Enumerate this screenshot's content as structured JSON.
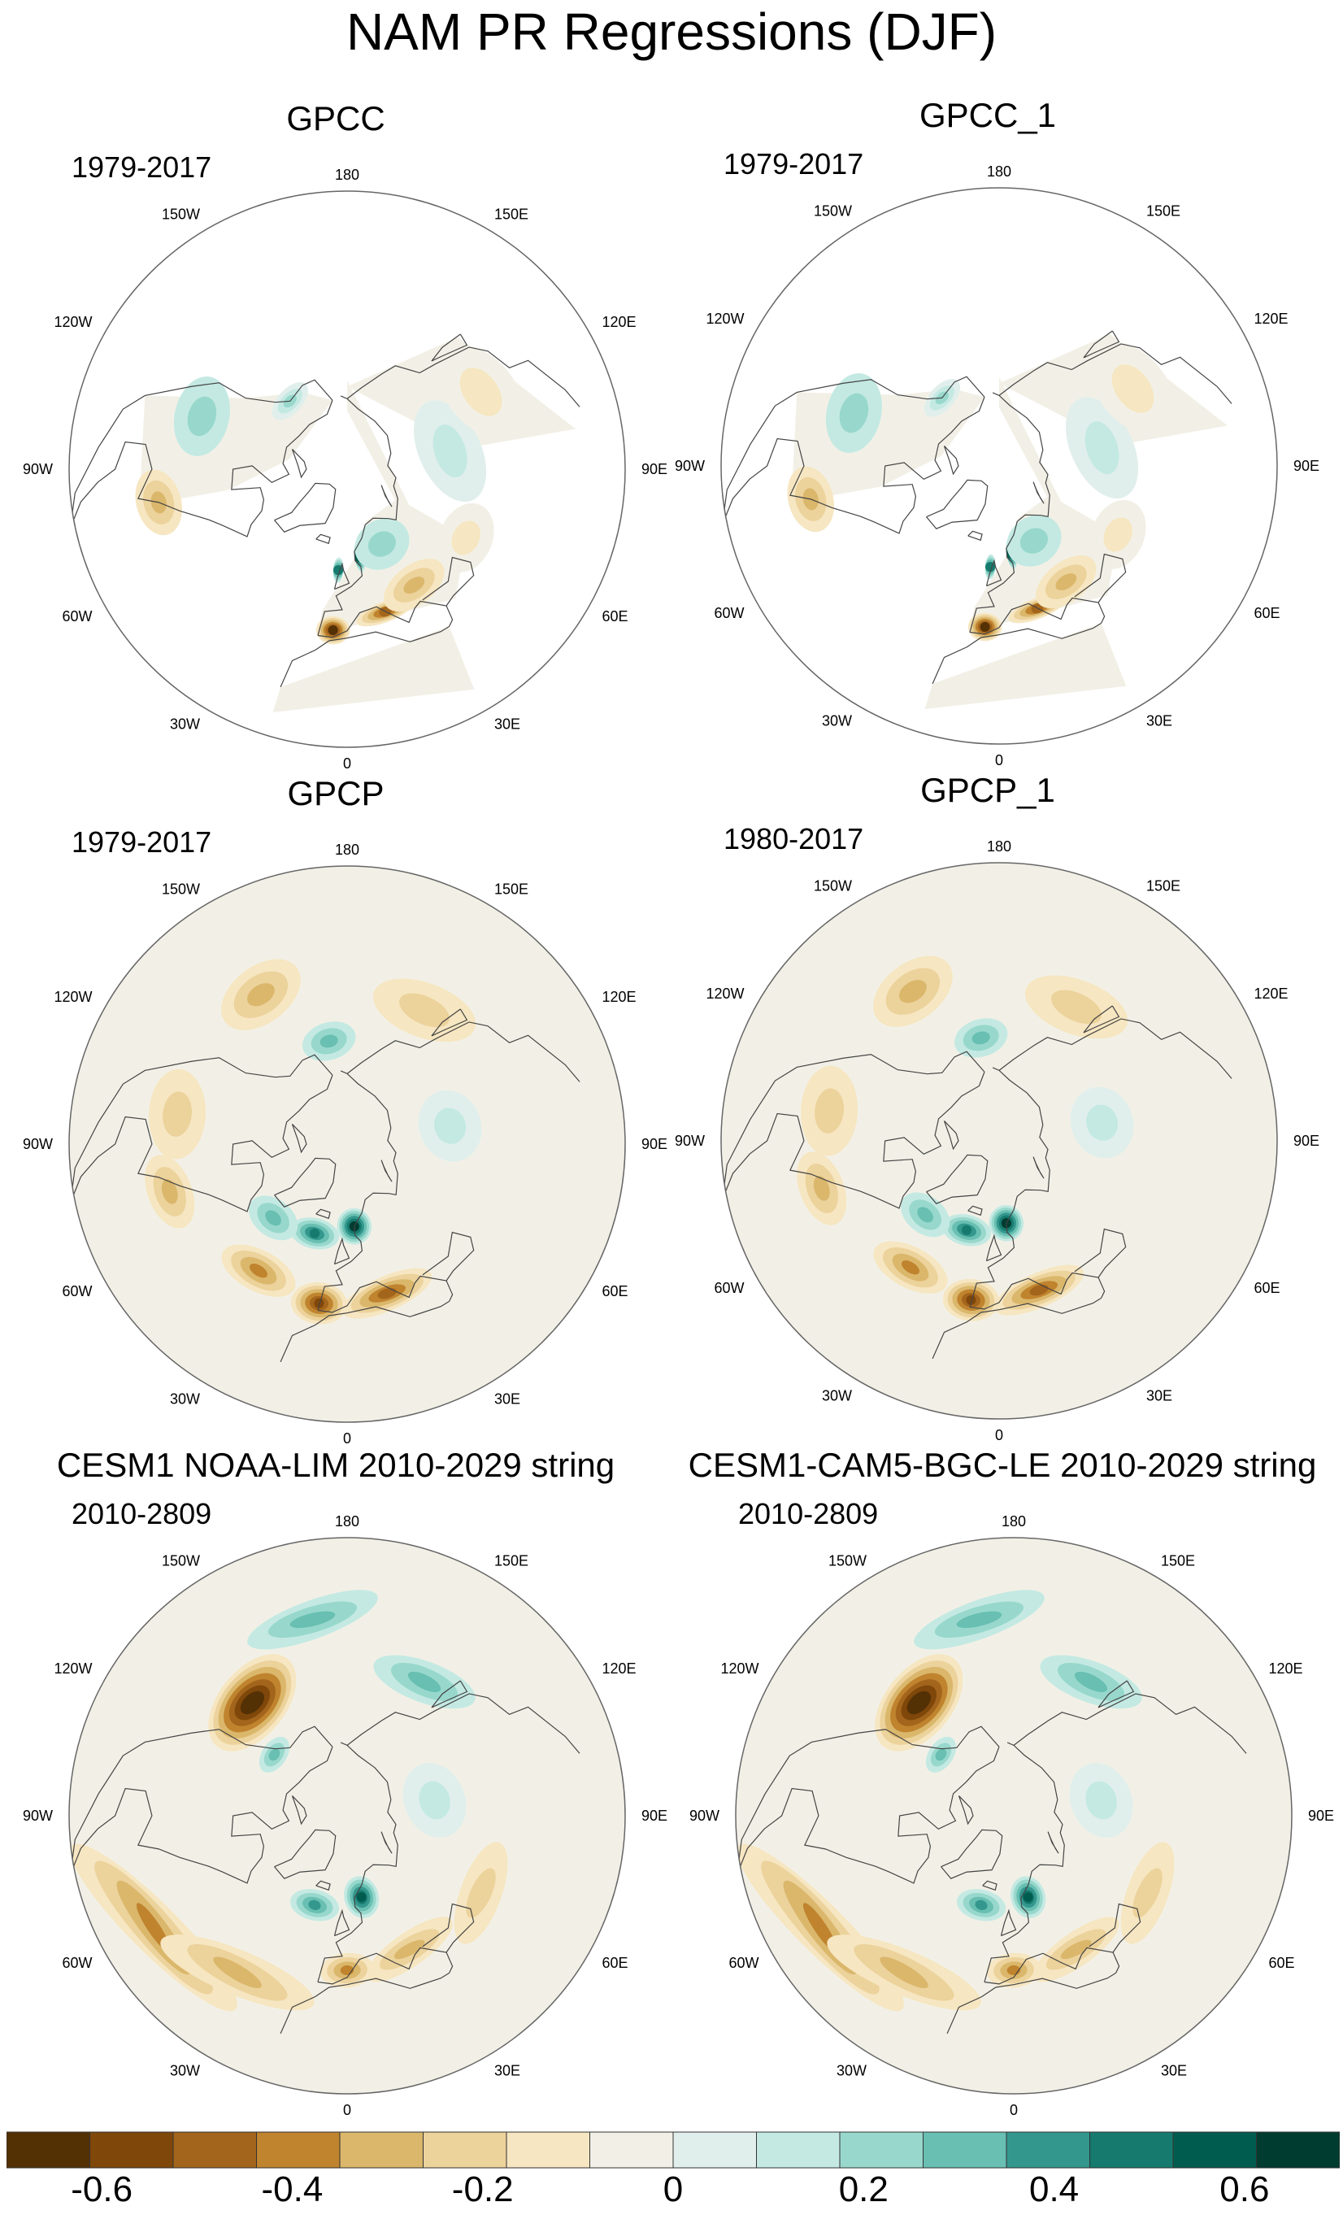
{
  "figure_title": "NAM PR Regressions (DJF)",
  "panels": [
    {
      "title": "GPCC",
      "years": "1979-2017",
      "pattern": "obs_gpcc"
    },
    {
      "title": "GPCC_1",
      "years": "1979-2017",
      "pattern": "obs_gpcc"
    },
    {
      "title": "GPCP",
      "years": "1979-2017",
      "pattern": "obs_gpcp"
    },
    {
      "title": "GPCP_1",
      "years": "1980-2017",
      "pattern": "obs_gpcp"
    },
    {
      "title": "CESM1 NOAA-LIM 2010-2029 string",
      "years": "2010-2809",
      "pattern": "model"
    },
    {
      "title": "CESM1-CAM5-BGC-LE 2010-2029 string",
      "years": "2010-2809",
      "pattern": "model"
    }
  ],
  "longitude_labels": [
    "180",
    "150E",
    "120E",
    "90E",
    "60E",
    "30E",
    "0",
    "30W",
    "60W",
    "90W",
    "120W",
    "150W"
  ],
  "colorbar": {
    "labels": [
      "-0.6",
      "-0.4",
      "-0.2",
      "0",
      "0.2",
      "0.4",
      "0.6"
    ],
    "colors": [
      "#543005",
      "#7f470a",
      "#a3651c",
      "#c0832e",
      "#dab76b",
      "#ecd29b",
      "#f6e6c1",
      "#f2f0e6",
      "#e1efec",
      "#c4e9e3",
      "#98d8cc",
      "#68bfb2",
      "#34978e",
      "#177a6e",
      "#015c50",
      "#003c30"
    ]
  },
  "chart_data": {
    "type": "heatmap",
    "projection": "north-polar-stereographic",
    "title": "NAM PR Regressions (DJF)",
    "variable": "PR",
    "season": "DJF",
    "colorbar_range": [
      -0.7,
      0.7
    ],
    "colorbar_ticks": [
      -0.6,
      -0.4,
      -0.2,
      0,
      0.2,
      0.4,
      0.6
    ],
    "anomaly_blobs": {
      "obs_gpcc": [
        {
          "lon": -5,
          "lat": 38,
          "value": -0.65,
          "rx": 6,
          "ry": 4
        },
        {
          "lon": 15,
          "lat": 42,
          "value": -0.5,
          "rx": 12,
          "ry": 3
        },
        {
          "lon": 30,
          "lat": 46,
          "value": -0.3,
          "rx": 15,
          "ry": 6
        },
        {
          "lon": 8,
          "lat": 60,
          "value": 0.55,
          "rx": 3,
          "ry": 5
        },
        {
          "lon": -5,
          "lat": 56,
          "value": 0.5,
          "rx": 3,
          "ry": 4
        },
        {
          "lon": 25,
          "lat": 62,
          "value": 0.2,
          "rx": 20,
          "ry": 8
        },
        {
          "lon": -80,
          "lat": 30,
          "value": -0.35,
          "rx": 10,
          "ry": 6
        },
        {
          "lon": -110,
          "lat": 40,
          "value": 0.2,
          "rx": 15,
          "ry": 8
        },
        {
          "lon": -140,
          "lat": 60,
          "value": 0.25,
          "rx": 15,
          "ry": 4
        },
        {
          "lon": 100,
          "lat": 55,
          "value": 0.15,
          "rx": 30,
          "ry": 10
        },
        {
          "lon": 60,
          "lat": 45,
          "value": -0.15,
          "rx": 15,
          "ry": 8
        },
        {
          "lon": 120,
          "lat": 40,
          "value": -0.1,
          "rx": 20,
          "ry": 10
        }
      ],
      "obs_gpcp": [
        {
          "lon": -10,
          "lat": 38,
          "value": -0.55,
          "rx": 10,
          "ry": 6
        },
        {
          "lon": 15,
          "lat": 40,
          "value": -0.45,
          "rx": 18,
          "ry": 5
        },
        {
          "lon": -35,
          "lat": 40,
          "value": -0.4,
          "rx": 15,
          "ry": 6
        },
        {
          "lon": 5,
          "lat": 62,
          "value": 0.65,
          "rx": 12,
          "ry": 6
        },
        {
          "lon": -20,
          "lat": 58,
          "value": 0.5,
          "rx": 15,
          "ry": 5
        },
        {
          "lon": -45,
          "lat": 55,
          "value": 0.3,
          "rx": 15,
          "ry": 6
        },
        {
          "lon": -75,
          "lat": 32,
          "value": -0.35,
          "rx": 12,
          "ry": 6
        },
        {
          "lon": -100,
          "lat": 35,
          "value": -0.2,
          "rx": 15,
          "ry": 8
        },
        {
          "lon": -150,
          "lat": 35,
          "value": -0.3,
          "rx": 15,
          "ry": 8
        },
        {
          "lon": -170,
          "lat": 55,
          "value": 0.3,
          "rx": 15,
          "ry": 6
        },
        {
          "lon": 150,
          "lat": 40,
          "value": -0.2,
          "rx": 20,
          "ry": 8
        },
        {
          "lon": 100,
          "lat": 55,
          "value": 0.15,
          "rx": 20,
          "ry": 10
        }
      ],
      "model": [
        {
          "lon": -140,
          "lat": 42,
          "value": -0.75,
          "rx": 22,
          "ry": 10
        },
        {
          "lon": -60,
          "lat": 22,
          "value": -0.4,
          "rx": 30,
          "ry": 6
        },
        {
          "lon": -35,
          "lat": 30,
          "value": -0.35,
          "rx": 25,
          "ry": 6
        },
        {
          "lon": 0,
          "lat": 40,
          "value": -0.4,
          "rx": 10,
          "ry": 5
        },
        {
          "lon": 25,
          "lat": 42,
          "value": -0.3,
          "rx": 20,
          "ry": 5
        },
        {
          "lon": 10,
          "lat": 62,
          "value": 0.6,
          "rx": 12,
          "ry": 7
        },
        {
          "lon": -20,
          "lat": 58,
          "value": 0.4,
          "rx": 15,
          "ry": 5
        },
        {
          "lon": 150,
          "lat": 40,
          "value": 0.35,
          "rx": 20,
          "ry": 6
        },
        {
          "lon": -170,
          "lat": 28,
          "value": 0.3,
          "rx": 20,
          "ry": 5
        },
        {
          "lon": 60,
          "lat": 40,
          "value": -0.2,
          "rx": 20,
          "ry": 6
        },
        {
          "lon": -130,
          "lat": 58,
          "value": 0.3,
          "rx": 12,
          "ry": 4
        },
        {
          "lon": 100,
          "lat": 60,
          "value": 0.15,
          "rx": 25,
          "ry": 10
        }
      ]
    }
  }
}
